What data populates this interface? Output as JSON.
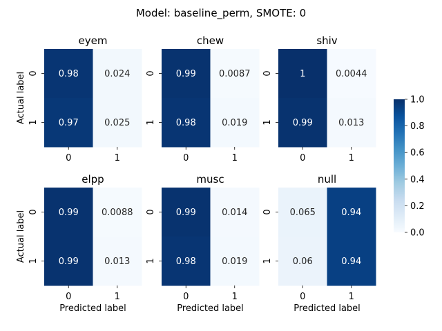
{
  "chart_data": {
    "type": "heatmap",
    "title": "Model: baseline_perm, SMOTE: 0",
    "xlabel": "Predicted label",
    "ylabel": "Actual label",
    "row_labels": [
      "0",
      "1"
    ],
    "col_labels": [
      "0",
      "1"
    ],
    "value_range": [
      0,
      1
    ],
    "colormap": "Blues",
    "colorbar": {
      "ticks": [
        "0.0",
        "0.2",
        "0.4",
        "0.6",
        "0.8",
        "1.0"
      ],
      "placement": "right"
    },
    "panels": [
      {
        "name": "eyem",
        "values": [
          [
            0.98,
            0.024
          ],
          [
            0.97,
            0.025
          ]
        ],
        "labels": [
          [
            "0.98",
            "0.024"
          ],
          [
            "0.97",
            "0.025"
          ]
        ]
      },
      {
        "name": "chew",
        "values": [
          [
            0.99,
            0.0087
          ],
          [
            0.98,
            0.019
          ]
        ],
        "labels": [
          [
            "0.99",
            "0.0087"
          ],
          [
            "0.98",
            "0.019"
          ]
        ]
      },
      {
        "name": "shiv",
        "values": [
          [
            1,
            0.0044
          ],
          [
            0.99,
            0.013
          ]
        ],
        "labels": [
          [
            "1",
            "0.0044"
          ],
          [
            "0.99",
            "0.013"
          ]
        ]
      },
      {
        "name": "elpp",
        "values": [
          [
            0.99,
            0.0088
          ],
          [
            0.99,
            0.013
          ]
        ],
        "labels": [
          [
            "0.99",
            "0.0088"
          ],
          [
            "0.99",
            "0.013"
          ]
        ]
      },
      {
        "name": "musc",
        "values": [
          [
            0.99,
            0.014
          ],
          [
            0.98,
            0.019
          ]
        ],
        "labels": [
          [
            "0.99",
            "0.014"
          ],
          [
            "0.98",
            "0.019"
          ]
        ]
      },
      {
        "name": "null",
        "values": [
          [
            0.065,
            0.94
          ],
          [
            0.06,
            0.94
          ]
        ],
        "labels": [
          [
            "0.065",
            "0.94"
          ],
          [
            "0.06",
            "0.94"
          ]
        ]
      }
    ]
  }
}
